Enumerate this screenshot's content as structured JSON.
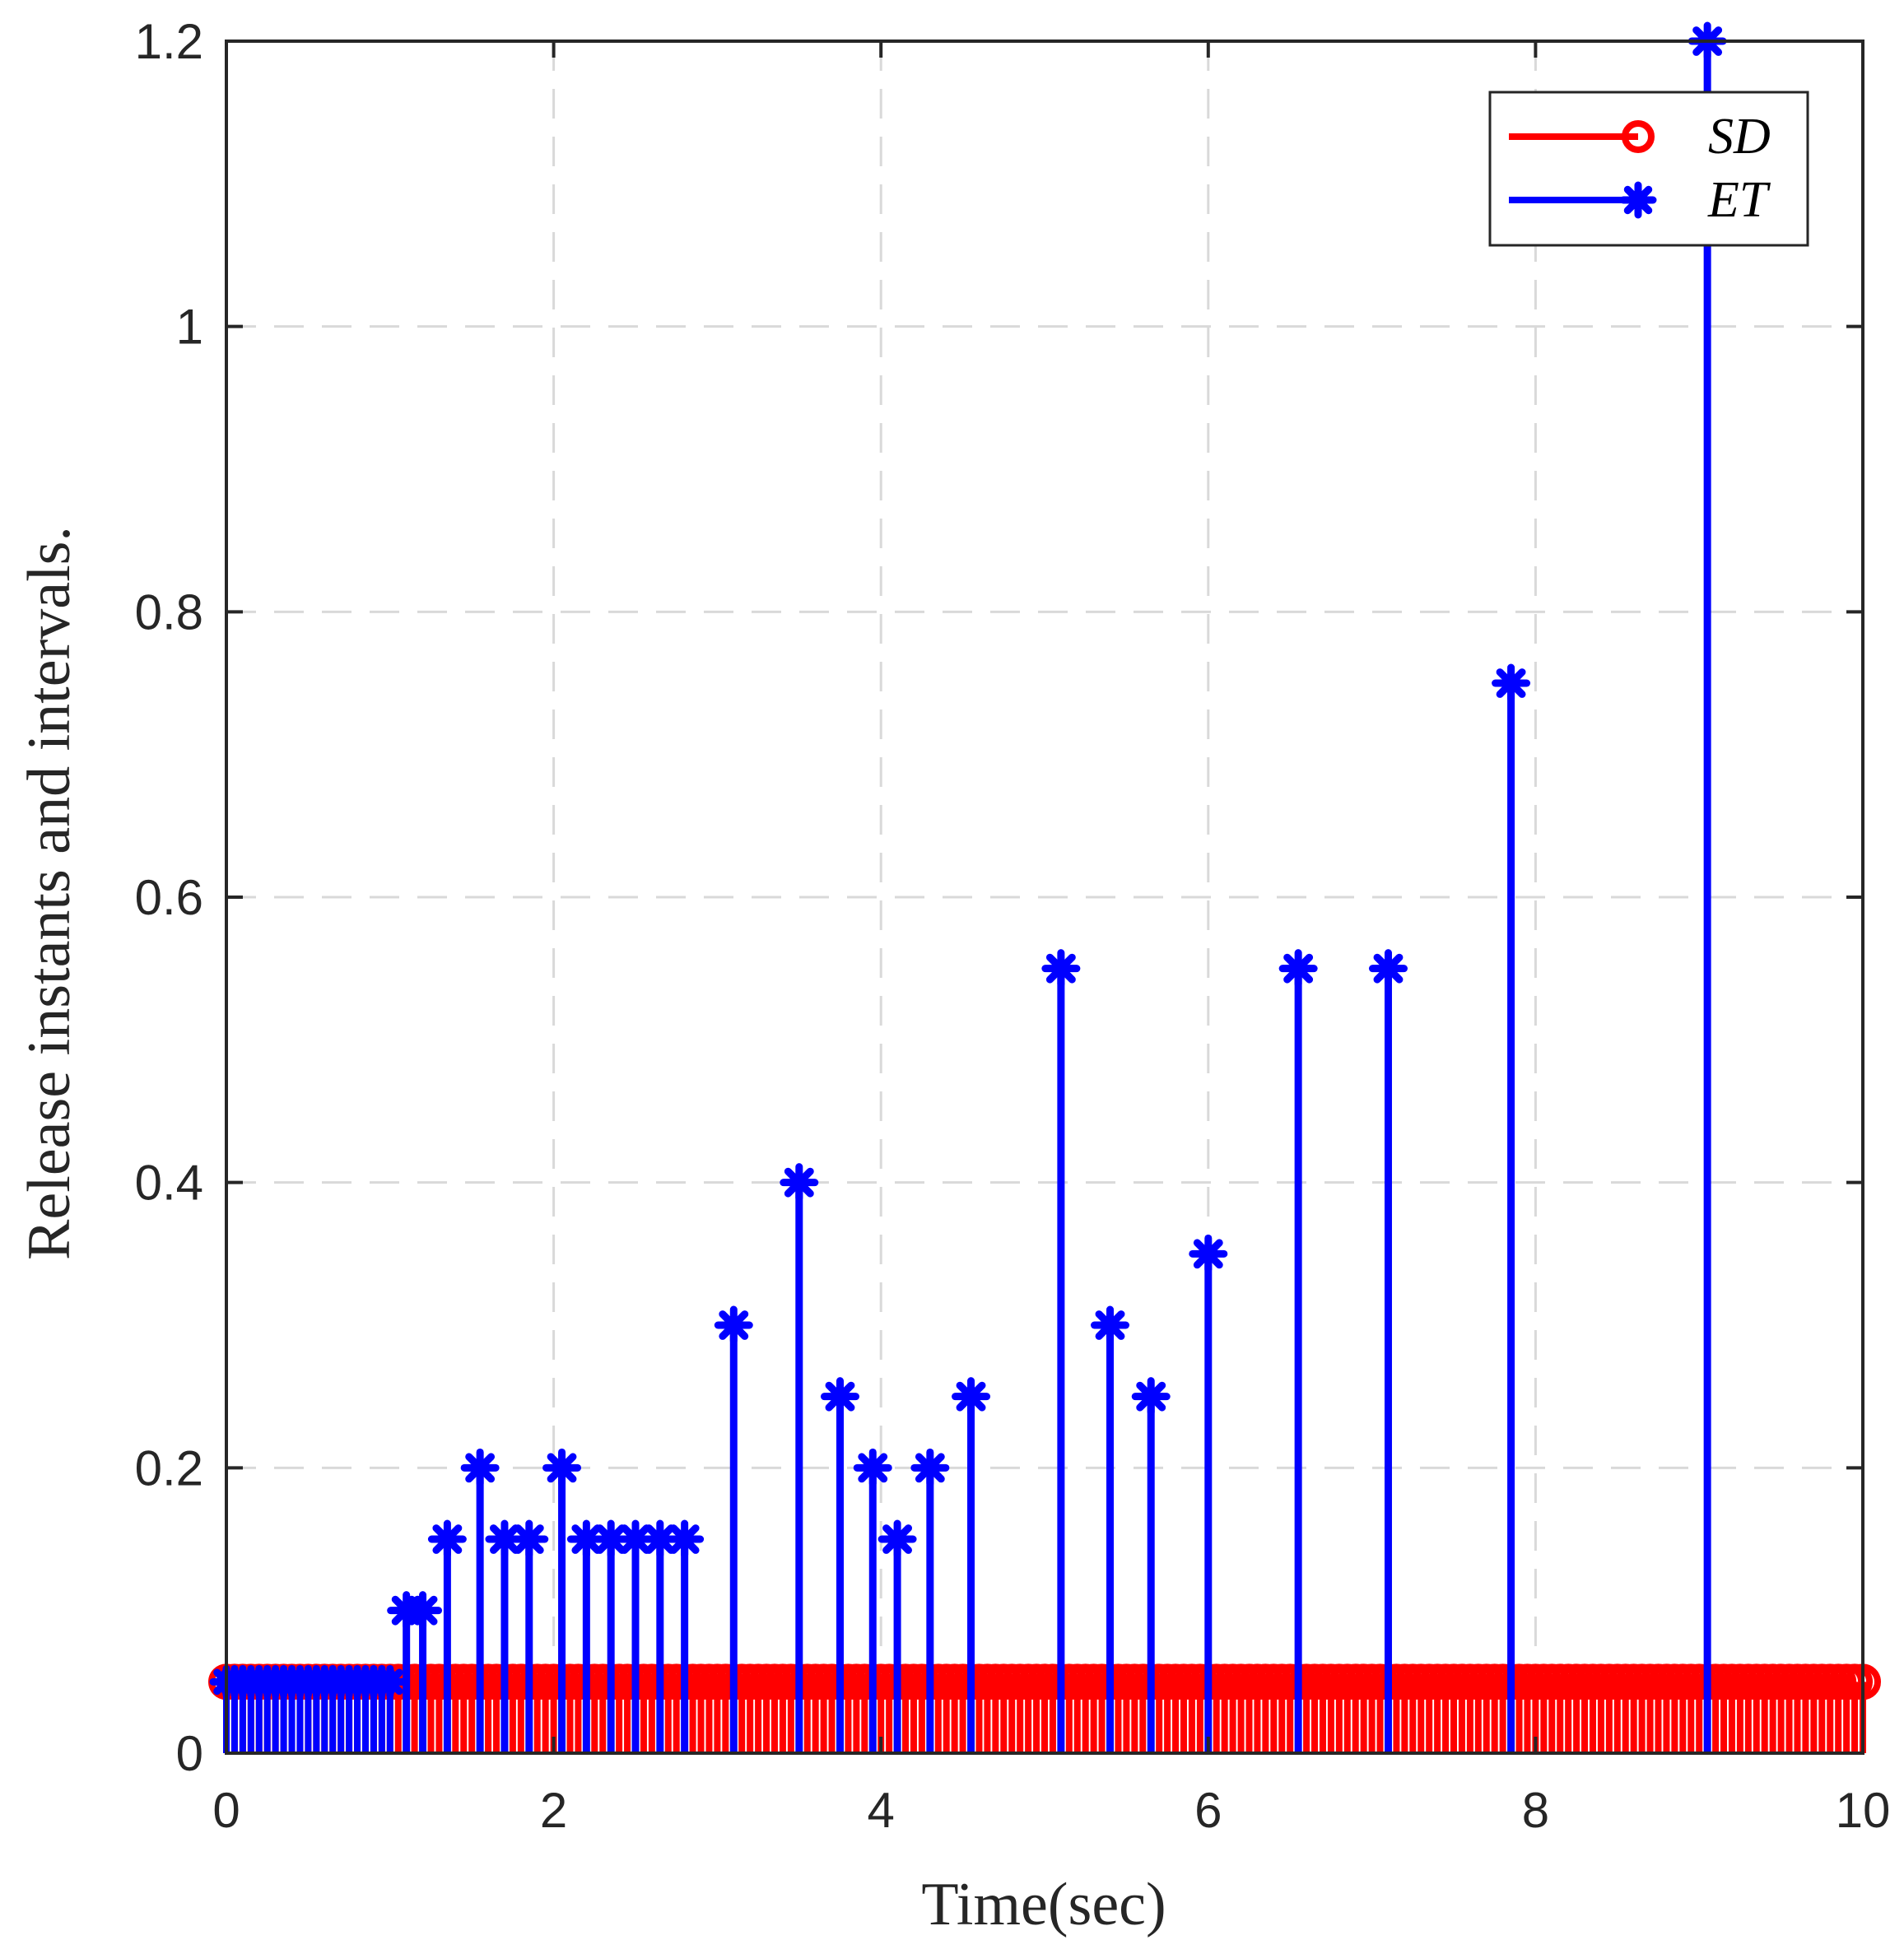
{
  "chart_data": {
    "type": "stem",
    "title": "",
    "xlabel": "Time(sec)",
    "ylabel": "Release instants and intervals.",
    "xlim": [
      0,
      10
    ],
    "ylim": [
      0,
      1.2
    ],
    "xticks": [
      0,
      2,
      4,
      6,
      8,
      10
    ],
    "xtick_labels": [
      "0",
      "2",
      "4",
      "6",
      "8",
      "10"
    ],
    "yticks": [
      0,
      0.2,
      0.4,
      0.6,
      0.8,
      1,
      1.2
    ],
    "ytick_labels": [
      "0",
      "0.2",
      "0.4",
      "0.6",
      "0.8",
      "1",
      "1.2"
    ],
    "grid": true,
    "legend_position": "top-right",
    "series": [
      {
        "name": "SD",
        "label": "SD",
        "color": "#ff0000",
        "marker": "circle",
        "sampling_period": 0.05,
        "value": 0.05,
        "x_range": [
          0,
          10
        ]
      },
      {
        "name": "ET",
        "label": "ET",
        "color": "#0000ff",
        "marker": "asterisk",
        "dense_block": {
          "x_range": [
            0,
            1.0
          ],
          "period": 0.05,
          "value": 0.05
        },
        "x": [
          1.1,
          1.2,
          1.35,
          1.55,
          1.7,
          1.85,
          2.05,
          2.2,
          2.35,
          2.5,
          2.65,
          2.8,
          3.1,
          3.5,
          3.75,
          3.95,
          4.1,
          4.3,
          4.55,
          5.1,
          5.4,
          5.65,
          6.0,
          6.55,
          7.1,
          7.85,
          9.05
        ],
        "values": [
          0.1,
          0.1,
          0.15,
          0.2,
          0.15,
          0.15,
          0.2,
          0.15,
          0.15,
          0.15,
          0.15,
          0.15,
          0.3,
          0.4,
          0.25,
          0.2,
          0.15,
          0.2,
          0.25,
          0.55,
          0.3,
          0.25,
          0.35,
          0.55,
          0.55,
          0.75,
          1.2
        ]
      }
    ]
  }
}
